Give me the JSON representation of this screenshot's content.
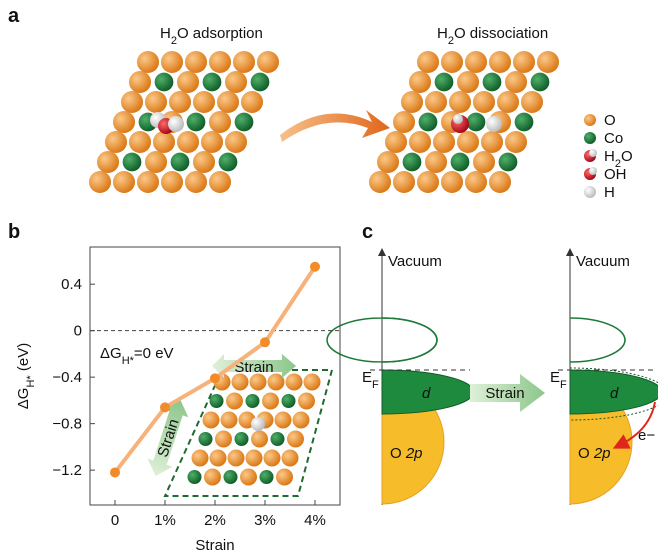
{
  "panel_a": {
    "label": "a",
    "left_title": [
      "H",
      "2",
      "O adsorption"
    ],
    "right_title": [
      "H",
      "2",
      "O dissociation"
    ],
    "legend": [
      [
        "O"
      ],
      [
        "Co"
      ],
      [
        "H",
        "2",
        "O"
      ],
      [
        "OH"
      ],
      [
        "H"
      ]
    ]
  },
  "chart_data": {
    "type": "line",
    "label": "b",
    "categories": [
      "0",
      "1%",
      "2%",
      "3%",
      "4%"
    ],
    "values": [
      -1.22,
      -0.66,
      -0.41,
      -0.1,
      0.55
    ],
    "color": "#f28c28",
    "line_color": "#f6b27a",
    "ylim": [
      -1.5,
      0.72
    ],
    "yticks": [
      {
        "value": -1.2,
        "label": "−1.2"
      },
      {
        "value": -0.8,
        "label": "−0.8"
      },
      {
        "value": -0.4,
        "label": "−0.4"
      },
      0,
      0.4
    ],
    "hline": 0,
    "x_label": "Strain",
    "y_label": [
      "ΔG",
      "H*",
      " (eV)"
    ],
    "annotation": [
      "ΔG",
      "H*",
      "=0 eV"
    ],
    "inset_labels": [
      "Strain",
      "Strain"
    ]
  },
  "panel_c": {
    "label": "c",
    "vacuum": [
      "Vacuum",
      "Vacuum"
    ],
    "ef": [
      [
        "E",
        "F"
      ],
      [
        "E",
        "F"
      ]
    ],
    "d": [
      "d",
      "d"
    ],
    "o2p": [
      [
        "O ",
        "2p"
      ],
      [
        "O ",
        "2p"
      ]
    ],
    "strain": "Strain",
    "electron": "e−"
  }
}
